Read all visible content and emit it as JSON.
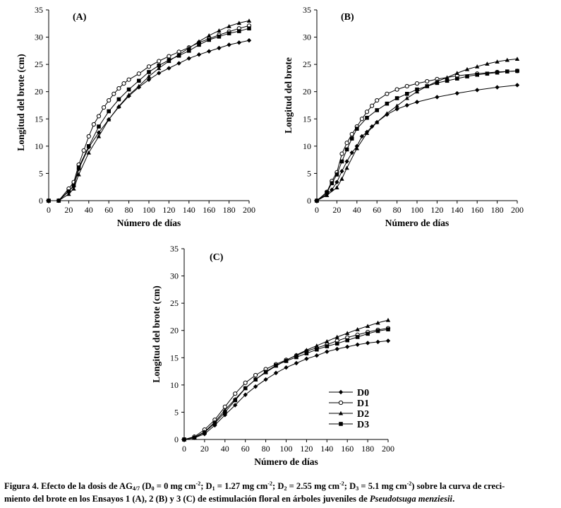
{
  "chart_data": [
    {
      "type": "line",
      "panel_label": "(A)",
      "xlabel": "Número de días",
      "ylabel": "Longitud del brote (cm)",
      "xlim": [
        0,
        200
      ],
      "ylim": [
        0,
        35
      ],
      "xticks": [
        "0",
        "20",
        "40",
        "60",
        "80",
        "100",
        "120",
        "140",
        "160",
        "180",
        "200"
      ],
      "yticks": [
        "0",
        "5",
        "10",
        "15",
        "20",
        "25",
        "30",
        "35"
      ],
      "grid": false,
      "series": [
        {
          "name": "D0",
          "marker": "diamond",
          "x": [
            0,
            10,
            20,
            25,
            30,
            40,
            50,
            60,
            70,
            80,
            90,
            100,
            110,
            120,
            130,
            140,
            150,
            160,
            170,
            180,
            190,
            200
          ],
          "y": [
            0,
            0,
            1.8,
            2.6,
            5.8,
            9.8,
            12.5,
            14.9,
            17.2,
            19.2,
            20.8,
            22.2,
            23.4,
            24.3,
            25.2,
            26.1,
            26.8,
            27.4,
            28.0,
            28.6,
            29.0,
            29.4
          ]
        },
        {
          "name": "D1",
          "marker": "circle",
          "x": [
            0,
            10,
            20,
            25,
            30,
            35,
            40,
            45,
            50,
            55,
            60,
            65,
            70,
            75,
            80,
            90,
            100,
            110,
            120,
            130,
            140,
            150,
            160,
            170,
            180,
            190,
            200
          ],
          "y": [
            0,
            0,
            2.2,
            3.4,
            6.6,
            9.2,
            11.8,
            14.0,
            15.5,
            17.1,
            18.4,
            19.6,
            20.6,
            21.5,
            22.2,
            23.3,
            24.6,
            25.6,
            26.5,
            27.3,
            28.1,
            29.0,
            29.7,
            30.4,
            31.0,
            31.6,
            32.1
          ]
        },
        {
          "name": "D2",
          "marker": "triangle",
          "x": [
            0,
            10,
            20,
            25,
            30,
            40,
            50,
            60,
            70,
            80,
            90,
            100,
            110,
            120,
            130,
            140,
            150,
            160,
            170,
            180,
            190,
            200
          ],
          "y": [
            0,
            0,
            1.2,
            2.2,
            4.8,
            8.8,
            11.8,
            14.9,
            17.3,
            19.4,
            21.0,
            22.8,
            24.3,
            25.6,
            26.8,
            28.0,
            29.2,
            30.3,
            31.2,
            32.0,
            32.6,
            33.0
          ]
        },
        {
          "name": "D3",
          "marker": "square",
          "x": [
            0,
            10,
            20,
            25,
            30,
            40,
            50,
            60,
            70,
            80,
            90,
            100,
            110,
            120,
            130,
            140,
            150,
            160,
            170,
            180,
            190,
            200
          ],
          "y": [
            0,
            0,
            1.7,
            2.8,
            6.1,
            10.0,
            13.6,
            16.4,
            18.6,
            20.4,
            22.0,
            23.6,
            24.8,
            25.8,
            26.6,
            27.5,
            28.6,
            29.5,
            30.1,
            30.7,
            31.1,
            31.6
          ]
        }
      ]
    },
    {
      "type": "line",
      "panel_label": "(B)",
      "xlabel": "Número de días",
      "ylabel": "Longitud del brote",
      "xlim": [
        0,
        200
      ],
      "ylim": [
        0,
        35
      ],
      "xticks": [
        "0",
        "20",
        "40",
        "60",
        "80",
        "100",
        "120",
        "140",
        "160",
        "180",
        "200"
      ],
      "yticks": [
        "0",
        "5",
        "10",
        "15",
        "20",
        "25",
        "30",
        "35"
      ],
      "grid": false,
      "series": [
        {
          "name": "D0",
          "marker": "diamond",
          "x": [
            0,
            10,
            15,
            20,
            25,
            30,
            35,
            40,
            45,
            50,
            55,
            60,
            70,
            80,
            90,
            100,
            120,
            140,
            160,
            180,
            200
          ],
          "y": [
            0,
            1.2,
            2.0,
            3.4,
            5.4,
            7.2,
            8.8,
            10.0,
            11.8,
            12.6,
            13.6,
            14.4,
            15.8,
            16.8,
            17.5,
            18.1,
            19.0,
            19.7,
            20.3,
            20.8,
            21.2
          ]
        },
        {
          "name": "D1",
          "marker": "circle",
          "x": [
            0,
            10,
            15,
            20,
            25,
            30,
            35,
            40,
            45,
            50,
            55,
            60,
            70,
            80,
            90,
            100,
            110,
            120,
            140,
            160,
            180,
            200
          ],
          "y": [
            0,
            1.6,
            3.6,
            5.2,
            8.6,
            10.6,
            12.2,
            13.6,
            15.0,
            16.3,
            17.4,
            18.4,
            19.6,
            20.4,
            21.0,
            21.5,
            21.9,
            22.3,
            22.9,
            23.3,
            23.6,
            23.8
          ]
        },
        {
          "name": "D2",
          "marker": "triangle",
          "x": [
            0,
            10,
            20,
            25,
            30,
            40,
            50,
            60,
            70,
            80,
            90,
            100,
            110,
            120,
            130,
            140,
            150,
            160,
            170,
            180,
            190,
            200
          ],
          "y": [
            0,
            1.0,
            2.4,
            4.0,
            6.0,
            9.6,
            12.4,
            14.4,
            16.0,
            17.4,
            18.8,
            20.0,
            21.0,
            21.9,
            22.6,
            23.4,
            24.1,
            24.6,
            25.1,
            25.5,
            25.8,
            26.0
          ]
        },
        {
          "name": "D3",
          "marker": "square",
          "x": [
            0,
            10,
            15,
            20,
            25,
            30,
            35,
            40,
            50,
            60,
            70,
            80,
            90,
            100,
            110,
            120,
            130,
            140,
            150,
            160,
            170,
            180,
            190,
            200
          ],
          "y": [
            0,
            1.5,
            3.2,
            4.8,
            7.2,
            9.4,
            11.4,
            13.2,
            15.2,
            16.6,
            17.8,
            18.8,
            19.6,
            20.4,
            21.0,
            21.6,
            22.0,
            22.4,
            22.8,
            23.1,
            23.3,
            23.5,
            23.7,
            23.8
          ]
        }
      ]
    },
    {
      "type": "line",
      "panel_label": "(C)",
      "xlabel": "Número de días",
      "ylabel": "Longitud del brote (cm)",
      "xlim": [
        0,
        200
      ],
      "ylim": [
        0,
        35
      ],
      "xticks": [
        "0",
        "20",
        "40",
        "60",
        "80",
        "100",
        "120",
        "140",
        "160",
        "180",
        "200"
      ],
      "yticks": [
        "0",
        "5",
        "10",
        "15",
        "20",
        "25",
        "30",
        "35"
      ],
      "grid": false,
      "legend_position": "bottom-right",
      "series": [
        {
          "name": "D0",
          "marker": "diamond",
          "x": [
            0,
            10,
            20,
            30,
            40,
            50,
            60,
            70,
            80,
            90,
            100,
            110,
            120,
            130,
            140,
            150,
            160,
            170,
            180,
            190,
            200
          ],
          "y": [
            0,
            0.3,
            1.0,
            2.6,
            4.5,
            6.3,
            8.2,
            9.7,
            11.0,
            12.2,
            13.2,
            14.0,
            14.8,
            15.4,
            16.1,
            16.6,
            17.0,
            17.4,
            17.7,
            17.9,
            18.1
          ]
        },
        {
          "name": "D1",
          "marker": "circle",
          "x": [
            0,
            10,
            20,
            30,
            40,
            50,
            60,
            70,
            80,
            90,
            100,
            110,
            120,
            130,
            140,
            150,
            160,
            170,
            180,
            190,
            200
          ],
          "y": [
            0,
            0.5,
            1.8,
            3.6,
            6.0,
            8.4,
            10.4,
            11.8,
            12.9,
            13.8,
            14.6,
            15.4,
            16.2,
            16.8,
            17.4,
            18.1,
            18.7,
            19.2,
            19.7,
            20.1,
            20.4
          ]
        },
        {
          "name": "D2",
          "marker": "triangle",
          "x": [
            0,
            10,
            20,
            30,
            40,
            50,
            60,
            70,
            80,
            90,
            100,
            110,
            120,
            130,
            140,
            150,
            160,
            170,
            180,
            190,
            200
          ],
          "y": [
            0,
            0.4,
            1.4,
            3.2,
            5.4,
            7.4,
            9.4,
            11.0,
            12.3,
            13.5,
            14.5,
            15.5,
            16.4,
            17.2,
            18.0,
            18.8,
            19.5,
            20.2,
            20.8,
            21.4,
            21.9
          ]
        },
        {
          "name": "D3",
          "marker": "square",
          "x": [
            0,
            10,
            20,
            30,
            40,
            50,
            60,
            70,
            80,
            90,
            100,
            110,
            120,
            130,
            140,
            150,
            160,
            170,
            180,
            190,
            200
          ],
          "y": [
            0,
            0.3,
            1.3,
            3.0,
            5.0,
            7.2,
            9.4,
            11.0,
            12.4,
            13.6,
            14.4,
            15.1,
            15.8,
            16.5,
            17.1,
            17.6,
            18.2,
            18.8,
            19.4,
            19.9,
            20.2
          ]
        }
      ]
    }
  ],
  "caption": {
    "p1": "Figura 4. Efecto de la dosis de AG",
    "sub_ag": "4/7",
    "p2": " (D",
    "sub0": "0",
    "p3": " = 0 mg cm",
    "sup1": "-2",
    "p4": "; D",
    "sub1": "1",
    "p5": " = 1.27 mg cm",
    "sup2": "-2",
    "p6": "; D",
    "sub2": "2",
    "p7": " = 2.55 mg cm",
    "sup3": "-2",
    "p8": "; D",
    "sub3": "3",
    "p9": " = 5.1 mg cm",
    "sup4": "-2",
    "p10": ") sobre la curva de creci-",
    "p11": "miento del brote en los Ensayos 1 (A), 2 (B) y 3 (C) de estimulación floral en árboles juveniles de ",
    "species": "Pseudotsuga menziesii",
    "p12": "."
  }
}
